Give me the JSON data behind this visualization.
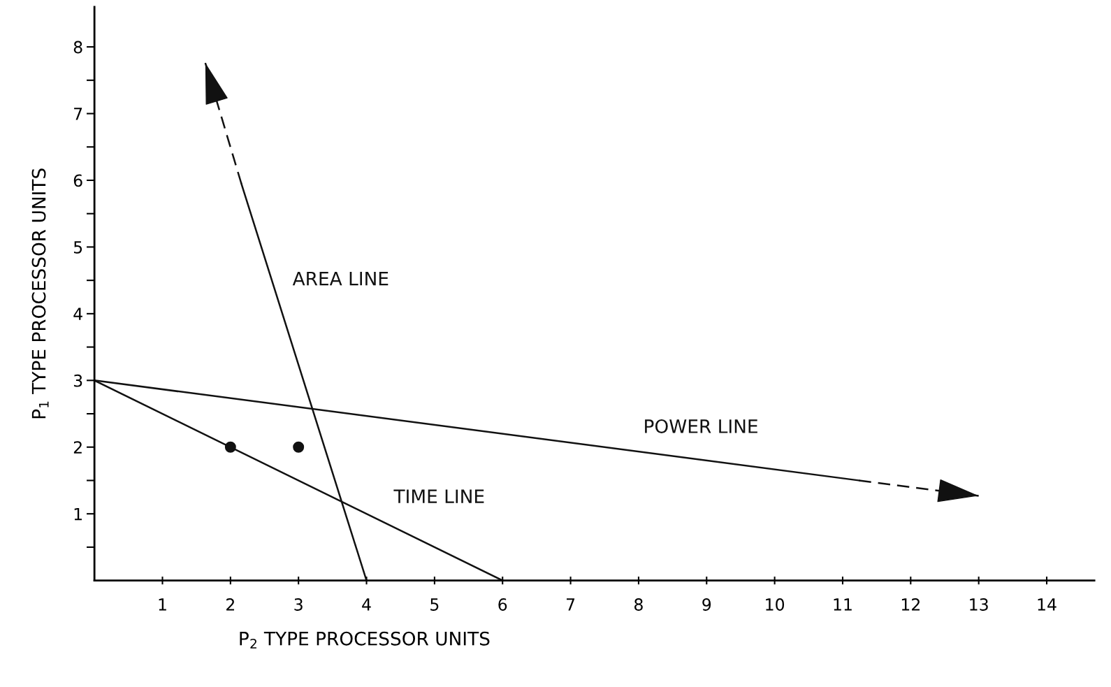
{
  "chart_data": {
    "type": "line",
    "xlabel": "P$_{2}$ TYPE PROCESSOR UNITS",
    "ylabel": "P$_{1}$ TYPE PROCESSOR UNITS",
    "xlim": [
      0,
      14.7
    ],
    "ylim": [
      0,
      8.6
    ],
    "xticks": [
      1,
      2,
      3,
      4,
      5,
      6,
      7,
      8,
      9,
      10,
      11,
      12,
      13,
      14
    ],
    "yticks": [
      {
        "value": 0.5,
        "label": null
      },
      1,
      {
        "value": 1.5,
        "label": null
      },
      2,
      {
        "value": 2.5,
        "label": null
      },
      3,
      {
        "value": 3.5,
        "label": null
      },
      4,
      {
        "value": 4.5,
        "label": null
      },
      5,
      {
        "value": 5.5,
        "label": null
      },
      6,
      {
        "value": 6.5,
        "label": null
      },
      7,
      {
        "value": 7.5,
        "label": null
      },
      8
    ],
    "grid": false,
    "legend": false,
    "series": [
      {
        "name": "TIME LINE",
        "color": "#111111",
        "x": [
          0,
          6
        ],
        "values": [
          3,
          0
        ],
        "line_style": "solid"
      },
      {
        "name": "AREA LINE",
        "color": "#111111",
        "x": [
          4,
          2.16
        ],
        "values": [
          0,
          5.95
        ],
        "line_style": "solid"
      },
      {
        "color": "#111111",
        "x": [
          2.16,
          1.63
        ],
        "values": [
          5.95,
          7.76
        ],
        "line_style": "dashed"
      },
      {
        "name": "POWER LINE",
        "color": "#111111",
        "x": [
          0,
          11.24
        ],
        "values": [
          3,
          1.5
        ],
        "line_style": "solid"
      },
      {
        "color": "#111111",
        "x": [
          11.24,
          13.0
        ],
        "values": [
          1.5,
          1.27
        ],
        "line_style": "dashed"
      },
      {
        "type": "scatter",
        "color": "#111111",
        "x": [
          2,
          3
        ],
        "values": [
          2,
          2
        ],
        "marker": "circle"
      }
    ]
  }
}
